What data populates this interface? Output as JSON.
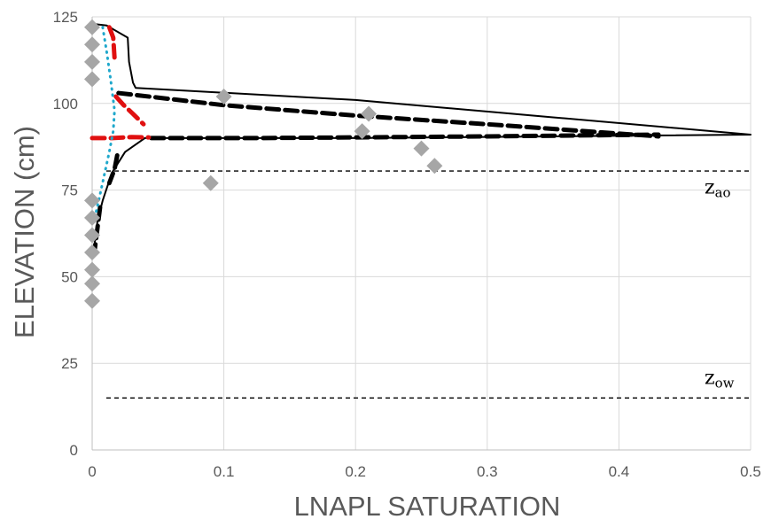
{
  "chart_data": {
    "type": "scatter",
    "title": "",
    "xlabel": "LNAPL SATURATION",
    "ylabel": "ELEVATION (cm)",
    "xlim": [
      0,
      0.5
    ],
    "ylim": [
      0,
      125
    ],
    "x_ticks": [
      0,
      0.1,
      0.2,
      0.3,
      0.4,
      0.5
    ],
    "x_tick_labels": [
      "0",
      "0.1",
      "0.2",
      "0.3",
      "0.4",
      "0.5"
    ],
    "y_ticks": [
      0,
      25,
      50,
      75,
      100,
      125
    ],
    "y_tick_labels": [
      "0",
      "25",
      "50",
      "75",
      "100",
      "125"
    ],
    "grid": true,
    "legend": "none",
    "colors": {
      "grid": "#d9d9d9",
      "axis": "#bfbfbf",
      "text": "#595959",
      "black_series": "#000000",
      "red_series": "#e01010",
      "blue_series": "#1fa8cc",
      "markers": "#a6a6a6"
    },
    "reference_lines": [
      {
        "y": 80.5,
        "label": "z",
        "subscript": "ao",
        "label_x": 0.465,
        "label_y": 74
      },
      {
        "y": 15,
        "label": "z",
        "subscript": "ow",
        "label_x": 0.465,
        "label_y": 19
      }
    ],
    "series": [
      {
        "style": "solid",
        "color": "#000000",
        "x": [
          0,
          0.011,
          0.027,
          0.028,
          0.031,
          0.033,
          0.2,
          0.35,
          0.5,
          0.35,
          0.2,
          0.12,
          0.06,
          0.04,
          0.025,
          0.015,
          0.008,
          0.004,
          0.002,
          0
        ],
        "y": [
          123,
          122.5,
          119,
          112,
          106,
          104.5,
          101,
          96,
          91,
          90.5,
          90,
          90,
          90,
          90,
          86,
          80,
          72,
          66,
          60,
          55
        ]
      },
      {
        "style": "dashed",
        "color": "#000000",
        "x": [
          0.02,
          0.1,
          0.2,
          0.3,
          0.43
        ],
        "y": [
          103,
          99.5,
          96.5,
          94,
          90.5
        ]
      },
      {
        "style": "dashed",
        "color": "#000000",
        "x": [
          0.045,
          0.12,
          0.2,
          0.3,
          0.43
        ],
        "y": [
          90,
          90,
          90.2,
          90.5,
          91
        ]
      },
      {
        "style": "dashed",
        "color": "#000000",
        "x": [
          0.019,
          0.017,
          0.013
        ],
        "y": [
          85,
          81,
          77
        ]
      },
      {
        "style": "dashed",
        "color": "#000000",
        "x": [
          0.006,
          0.004,
          0.002
        ],
        "y": [
          70,
          64,
          58
        ]
      },
      {
        "style": "dashed",
        "color": "#e01010",
        "x": [
          0.013,
          0.016,
          0.017
        ],
        "y": [
          122,
          119,
          113
        ]
      },
      {
        "style": "dashed",
        "color": "#e01010",
        "x": [
          0.018,
          0.024,
          0.031,
          0.039
        ],
        "y": [
          102,
          99.5,
          97,
          94
        ]
      },
      {
        "style": "dashed",
        "color": "#e01010",
        "x": [
          0,
          0.015,
          0.03,
          0.043
        ],
        "y": [
          90,
          90,
          90.3,
          90.2
        ]
      },
      {
        "style": "dotted",
        "color": "#1fa8cc",
        "x": [
          0.008,
          0.011,
          0.014,
          0.017,
          0.016,
          0.013,
          0.009,
          0.005,
          0.002
        ],
        "y": [
          122,
          115,
          107,
          98,
          92,
          86,
          79,
          72,
          67
        ]
      },
      {
        "style": "markers",
        "color": "#a6a6a6",
        "x": [
          0,
          0,
          0,
          0,
          0.1,
          0.21,
          0.205,
          0.25,
          0.26,
          0.09,
          0,
          0,
          0,
          0,
          0,
          0,
          0
        ],
        "y": [
          122,
          117,
          112,
          107,
          102,
          97,
          92,
          87,
          82,
          77,
          72,
          67,
          62,
          57,
          52,
          48,
          43
        ]
      }
    ]
  }
}
